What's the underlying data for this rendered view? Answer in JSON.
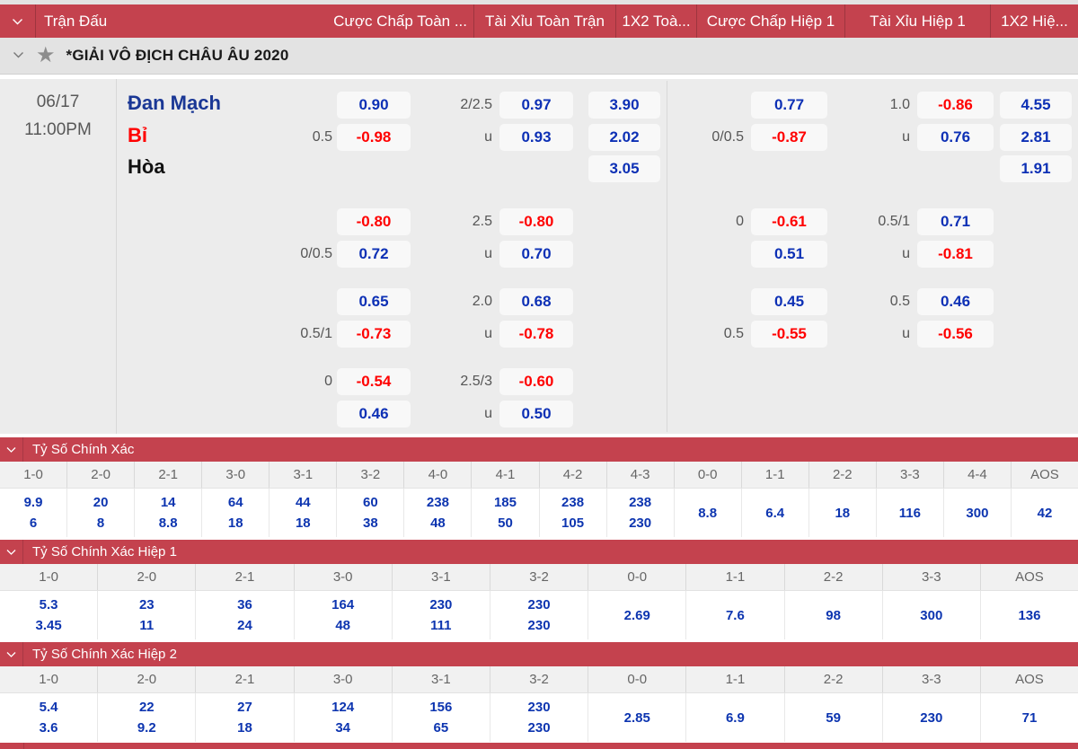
{
  "header": {
    "columns": [
      "Trận Đấu",
      "Cược Chấp Toàn ...",
      "Tài Xỉu Toàn Trận",
      "1X2 Toà...",
      "Cược Chấp Hiệp 1",
      "Tài Xỉu Hiệp 1",
      "1X2 Hiệ..."
    ]
  },
  "league": {
    "title": "*GIẢI VÔ ĐỊCH CHÂU ÂU 2020",
    "star_icon": "star-favorite"
  },
  "match": {
    "date": "06/17",
    "time": "11:00PM",
    "teams": {
      "home": "Đan Mạch",
      "away": "Bỉ",
      "draw": "Hòa"
    }
  },
  "colors": {
    "accent_red": "#c4424e",
    "divider_red": "#9e353f",
    "odds_blue": "#0d30b5",
    "odds_red": "#ff0000",
    "team_home_blue": "#1a3795",
    "team_away_red": "#ff0000"
  },
  "odds": {
    "rows": [
      {
        "ft_hdp": [
          {
            "hc": "",
            "v": "0.90",
            "c": "b"
          },
          {
            "hc": "0.5",
            "v": "-0.98",
            "c": "r"
          }
        ],
        "ft_ou": [
          {
            "hc": "2/2.5",
            "v": "0.97",
            "c": "b"
          },
          {
            "hc": "u",
            "v": "0.93",
            "c": "b"
          }
        ],
        "ft_1x2": [
          {
            "hc": "",
            "v": "3.90",
            "c": "b"
          },
          {
            "hc": "",
            "v": "2.02",
            "c": "b"
          },
          {
            "hc": "",
            "v": "3.05",
            "c": "b"
          }
        ],
        "h1_hdp": [
          {
            "hc": "",
            "v": "0.77",
            "c": "b"
          },
          {
            "hc": "0/0.5",
            "v": "-0.87",
            "c": "r"
          }
        ],
        "h1_ou": [
          {
            "hc": "1.0",
            "v": "-0.86",
            "c": "r"
          },
          {
            "hc": "u",
            "v": "0.76",
            "c": "b"
          }
        ],
        "h1_1x2": [
          {
            "hc": "",
            "v": "4.55",
            "c": "b"
          },
          {
            "hc": "",
            "v": "2.81",
            "c": "b"
          },
          {
            "hc": "",
            "v": "1.91",
            "c": "b"
          }
        ]
      },
      {
        "ft_hdp": [
          {
            "hc": "",
            "v": "-0.80",
            "c": "r"
          },
          {
            "hc": "0/0.5",
            "v": "0.72",
            "c": "b"
          }
        ],
        "ft_ou": [
          {
            "hc": "2.5",
            "v": "-0.80",
            "c": "r"
          },
          {
            "hc": "u",
            "v": "0.70",
            "c": "b"
          }
        ],
        "h1_hdp": [
          {
            "hc": "0",
            "v": "-0.61",
            "c": "r"
          },
          {
            "hc": "",
            "v": "0.51",
            "c": "b"
          }
        ],
        "h1_ou": [
          {
            "hc": "0.5/1",
            "v": "0.71",
            "c": "b"
          },
          {
            "hc": "u",
            "v": "-0.81",
            "c": "r"
          }
        ]
      },
      {
        "ft_hdp": [
          {
            "hc": "",
            "v": "0.65",
            "c": "b"
          },
          {
            "hc": "0.5/1",
            "v": "-0.73",
            "c": "r"
          }
        ],
        "ft_ou": [
          {
            "hc": "2.0",
            "v": "0.68",
            "c": "b"
          },
          {
            "hc": "u",
            "v": "-0.78",
            "c": "r"
          }
        ],
        "h1_hdp": [
          {
            "hc": "",
            "v": "0.45",
            "c": "b"
          },
          {
            "hc": "0.5",
            "v": "-0.55",
            "c": "r"
          }
        ],
        "h1_ou": [
          {
            "hc": "0.5",
            "v": "0.46",
            "c": "b"
          },
          {
            "hc": "u",
            "v": "-0.56",
            "c": "r"
          }
        ]
      },
      {
        "ft_hdp": [
          {
            "hc": "0",
            "v": "-0.54",
            "c": "r"
          },
          {
            "hc": "",
            "v": "0.46",
            "c": "b"
          }
        ],
        "ft_ou": [
          {
            "hc": "2.5/3",
            "v": "-0.60",
            "c": "r"
          },
          {
            "hc": "u",
            "v": "0.50",
            "c": "b"
          }
        ]
      }
    ]
  },
  "score_sections": [
    {
      "title": "Tỷ Số Chính Xác",
      "columns": [
        "1-0",
        "2-0",
        "2-1",
        "3-0",
        "3-1",
        "3-2",
        "4-0",
        "4-1",
        "4-2",
        "4-3",
        "0-0",
        "1-1",
        "2-2",
        "3-3",
        "4-4",
        "AOS"
      ],
      "values": [
        [
          "9.9",
          "6"
        ],
        [
          "20",
          "8"
        ],
        [
          "14",
          "8.8"
        ],
        [
          "64",
          "18"
        ],
        [
          "44",
          "18"
        ],
        [
          "60",
          "38"
        ],
        [
          "238",
          "48"
        ],
        [
          "185",
          "50"
        ],
        [
          "238",
          "105"
        ],
        [
          "238",
          "230"
        ],
        [
          "8.8"
        ],
        [
          "6.4"
        ],
        [
          "18"
        ],
        [
          "116"
        ],
        [
          "300"
        ],
        [
          "42"
        ]
      ]
    },
    {
      "title": "Tỷ Số Chính Xác Hiệp 1",
      "columns": [
        "1-0",
        "2-0",
        "2-1",
        "3-0",
        "3-1",
        "3-2",
        "0-0",
        "1-1",
        "2-2",
        "3-3",
        "AOS"
      ],
      "values": [
        [
          "5.3",
          "3.45"
        ],
        [
          "23",
          "11"
        ],
        [
          "36",
          "24"
        ],
        [
          "164",
          "48"
        ],
        [
          "230",
          "111"
        ],
        [
          "230",
          "230"
        ],
        [
          "2.69"
        ],
        [
          "7.6"
        ],
        [
          "98"
        ],
        [
          "300"
        ],
        [
          "136"
        ]
      ]
    },
    {
      "title": "Tỷ Số Chính Xác Hiệp 2",
      "columns": [
        "1-0",
        "2-0",
        "2-1",
        "3-0",
        "3-1",
        "3-2",
        "0-0",
        "1-1",
        "2-2",
        "3-3",
        "AOS"
      ],
      "values": [
        [
          "5.4",
          "3.6"
        ],
        [
          "22",
          "9.2"
        ],
        [
          "27",
          "18"
        ],
        [
          "124",
          "34"
        ],
        [
          "156",
          "65"
        ],
        [
          "230",
          "230"
        ],
        [
          "2.85"
        ],
        [
          "6.9"
        ],
        [
          "59"
        ],
        [
          "230"
        ],
        [
          "71"
        ]
      ]
    }
  ]
}
